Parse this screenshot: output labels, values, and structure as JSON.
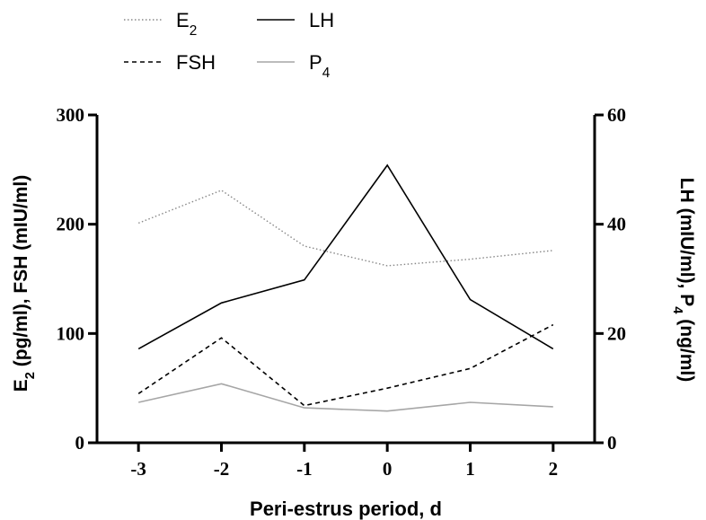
{
  "chart_data": {
    "type": "line",
    "title": "",
    "x": [
      -3,
      -2,
      -1,
      0,
      1,
      2
    ],
    "xticks": [
      "-3",
      "-2",
      "-1",
      "0",
      "1",
      "2"
    ],
    "xlabel": "Peri-estrus period, d",
    "xlim": [
      -3.5,
      2.5
    ],
    "ylabel_left": {
      "main": "E",
      "sub": "2",
      "rest": " (pg/ml), FSH (mIU/ml)"
    },
    "ylabel_right": {
      "main": "LH (mIU/ml), P",
      "sub": "4",
      "rest": " (ng/ml)"
    },
    "ylim_left": [
      0,
      300
    ],
    "ylim_right": [
      0,
      60
    ],
    "yticks_left": [
      "0",
      "100",
      "200",
      "300"
    ],
    "yticks_right": [
      "0",
      "20",
      "40",
      "60"
    ],
    "grid": false,
    "legend_position": "top-left",
    "series": [
      {
        "name": "E",
        "name_sub": "2",
        "axis": "left",
        "style": "dotted",
        "color": "#888888",
        "values": [
          201,
          231,
          180,
          162,
          168,
          176
        ]
      },
      {
        "name": "FSH",
        "name_sub": "",
        "axis": "left",
        "style": "dashed",
        "color": "#000000",
        "values": [
          45,
          96,
          34,
          50,
          68,
          108
        ]
      },
      {
        "name": "LH",
        "name_sub": "",
        "axis": "right",
        "style": "solid",
        "color": "#000000",
        "values": [
          17.2,
          25.6,
          29.8,
          50.8,
          26.2,
          17.2
        ]
      },
      {
        "name": "P",
        "name_sub": "4",
        "axis": "right",
        "style": "solid",
        "color": "#a6a6a6",
        "values": [
          7.4,
          10.8,
          6.4,
          5.8,
          7.4,
          6.6
        ]
      }
    ]
  }
}
